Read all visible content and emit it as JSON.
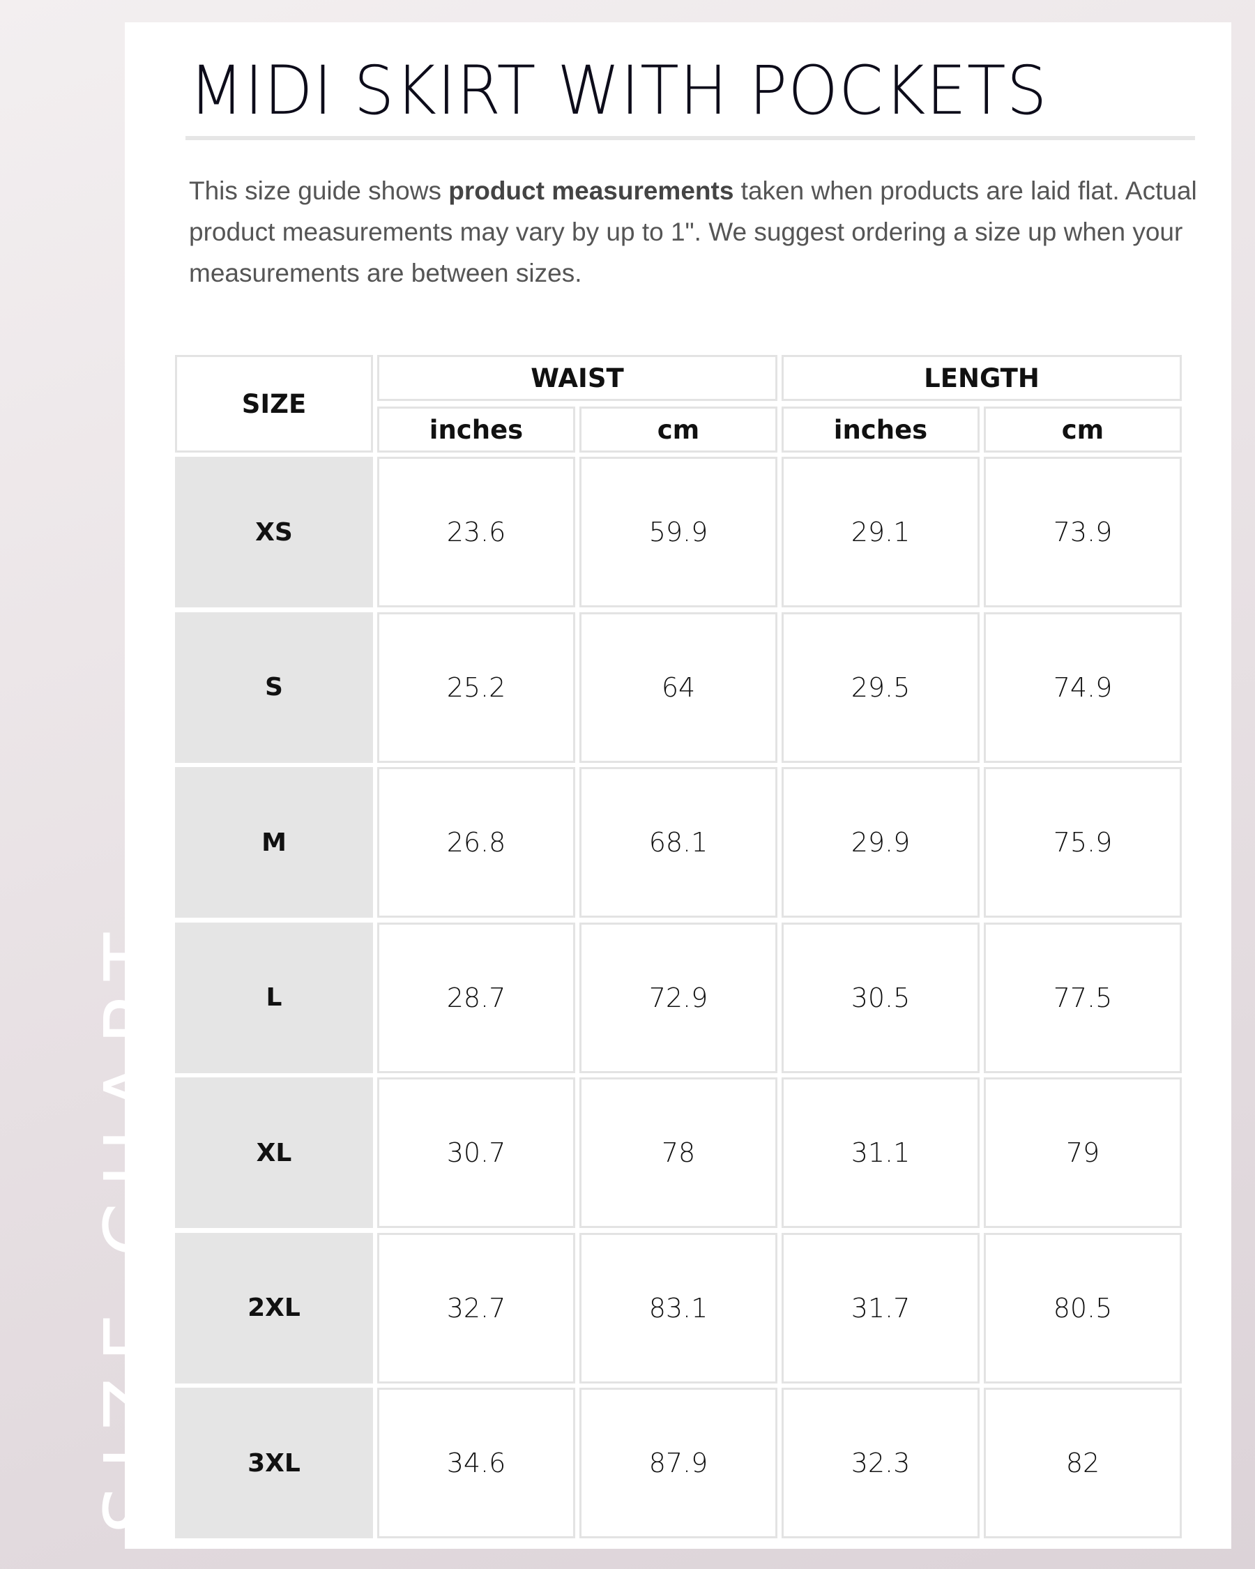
{
  "side_label": "SIZE CHART",
  "title": "MIDI SKIRT WITH POCKETS",
  "description": {
    "before": "This size guide shows ",
    "bold": "product measurements",
    "after": " taken when products are laid flat. Actual product measurements may vary by up to 1\". We suggest ordering a size up when your measurements are between sizes."
  },
  "table": {
    "size_header": "SIZE",
    "groups": [
      "WAIST",
      "LENGTH"
    ],
    "units": [
      "inches",
      "cm",
      "inches",
      "cm"
    ],
    "rows": [
      {
        "size": "XS",
        "values": [
          "23.6",
          "59.9",
          "29.1",
          "73.9"
        ]
      },
      {
        "size": "S",
        "values": [
          "25.2",
          "64",
          "29.5",
          "74.9"
        ]
      },
      {
        "size": "M",
        "values": [
          "26.8",
          "68.1",
          "29.9",
          "75.9"
        ]
      },
      {
        "size": "L",
        "values": [
          "28.7",
          "72.9",
          "30.5",
          "77.5"
        ]
      },
      {
        "size": "XL",
        "values": [
          "30.7",
          "78",
          "31.1",
          "79"
        ]
      },
      {
        "size": "2XL",
        "values": [
          "32.7",
          "83.1",
          "31.7",
          "80.5"
        ]
      },
      {
        "size": "3XL",
        "values": [
          "34.6",
          "87.9",
          "32.3",
          "82"
        ]
      }
    ]
  }
}
